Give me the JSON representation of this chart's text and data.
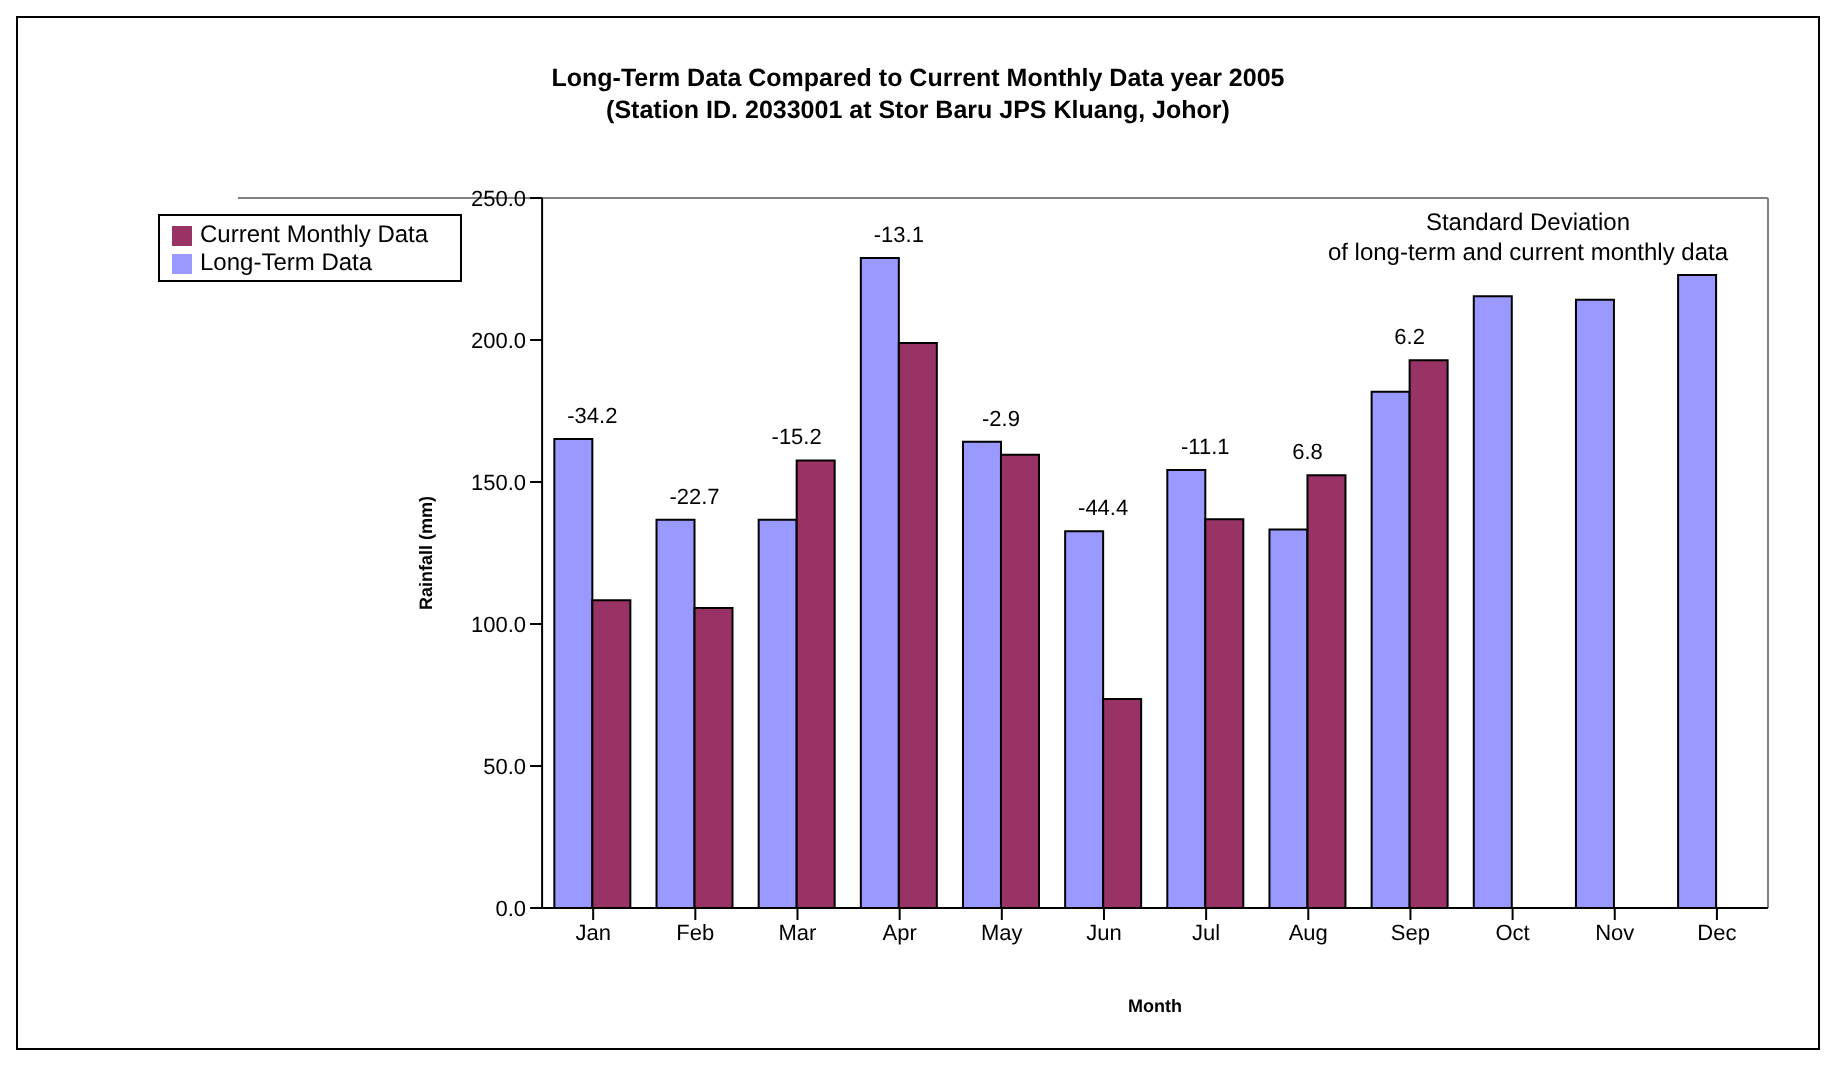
{
  "chart_data": {
    "type": "bar",
    "title": "Long-Term Data Compared to Current Monthly Data year 2005",
    "subtitle": "(Station ID. 2033001 at Stor Baru JPS Kluang, Johor)",
    "xlabel": "Month",
    "ylabel": "Rainfall (mm)",
    "categories": [
      "Jan",
      "Feb",
      "Mar",
      "Apr",
      "May",
      "Jun",
      "Jul",
      "Aug",
      "Sep",
      "Oct",
      "Nov",
      "Dec"
    ],
    "series": [
      {
        "name": "Long-Term Data",
        "color": "#9999ff",
        "values": [
          165.1,
          136.7,
          136.7,
          228.9,
          164.2,
          132.7,
          154.2,
          133.3,
          181.8,
          215.4,
          214.2,
          222.9
        ]
      },
      {
        "name": "Current Monthly Data",
        "color": "#993366",
        "values": [
          108.4,
          105.6,
          157.6,
          198.9,
          159.6,
          73.6,
          136.9,
          152.4,
          192.9,
          null,
          null,
          null
        ]
      }
    ],
    "ylim": [
      0,
      250
    ],
    "yticks": [
      {
        "value": 0,
        "label": "0.0"
      },
      {
        "value": 50,
        "label": "50.0"
      },
      {
        "value": 100,
        "label": "100.0"
      },
      {
        "value": 150,
        "label": "150.0"
      },
      {
        "value": 200,
        "label": "200.0"
      },
      {
        "value": 250,
        "label": "250.0"
      }
    ],
    "annotations": [
      {
        "text": "-34.2",
        "x": "Jan",
        "y": 165.1
      },
      {
        "text": "-22.7",
        "x": "Feb",
        "y": 136.7
      },
      {
        "text": "-15.2",
        "x": "Mar",
        "y": 157.6
      },
      {
        "text": "-13.1",
        "x": "Apr",
        "y": 228.9
      },
      {
        "text": "-2.9",
        "x": "May",
        "y": 164.2
      },
      {
        "text": "-44.4",
        "x": "Jun",
        "y": 132.7
      },
      {
        "text": "-11.1",
        "x": "Jul",
        "y": 154.2
      },
      {
        "text": "6.8",
        "x": "Aug",
        "y": 152.4
      },
      {
        "text": "6.2",
        "x": "Sep",
        "y": 192.9
      },
      "Standard Deviation\nof long-term and current monthly data"
    ],
    "grid": false,
    "legend": "top left"
  }
}
